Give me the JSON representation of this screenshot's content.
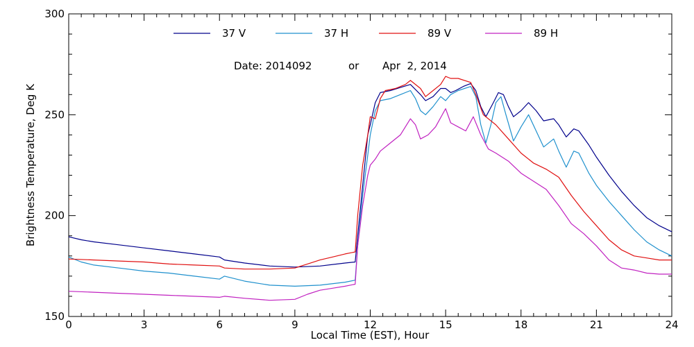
{
  "chart_data": {
    "type": "line",
    "title": "",
    "annotation": {
      "date_label": "Date: 2014092",
      "or_label": "or",
      "date_text": "Apr  2, 2014"
    },
    "xlabel": "Local Time (EST), Hour",
    "ylabel": "Brightness Temperature, Deg K",
    "xlim": [
      0,
      24
    ],
    "ylim": [
      150,
      300
    ],
    "x_ticks": [
      0,
      3,
      6,
      9,
      12,
      15,
      18,
      21,
      24
    ],
    "x_minor_step": 0.5,
    "y_ticks": [
      150,
      200,
      250,
      300
    ],
    "y_minor_step": 10,
    "grid": false,
    "legend_position": "top",
    "series": [
      {
        "name": "37 V",
        "color": "#00008b",
        "points": [
          [
            0,
            189.5
          ],
          [
            0.5,
            188
          ],
          [
            1,
            187
          ],
          [
            2,
            185.5
          ],
          [
            3,
            184
          ],
          [
            4,
            182.5
          ],
          [
            5,
            181
          ],
          [
            6,
            179.5
          ],
          [
            6.2,
            178
          ],
          [
            7,
            176.5
          ],
          [
            8,
            175
          ],
          [
            9,
            174.5
          ],
          [
            10,
            175
          ],
          [
            11,
            176.5
          ],
          [
            11.4,
            177
          ],
          [
            11.5,
            190
          ],
          [
            11.7,
            215
          ],
          [
            11.9,
            240
          ],
          [
            12,
            245
          ],
          [
            12.2,
            256
          ],
          [
            12.4,
            261
          ],
          [
            12.8,
            262
          ],
          [
            13.2,
            263.5
          ],
          [
            13.6,
            265
          ],
          [
            14,
            260
          ],
          [
            14.2,
            257
          ],
          [
            14.5,
            259
          ],
          [
            14.8,
            263
          ],
          [
            15,
            263
          ],
          [
            15.2,
            261
          ],
          [
            15.4,
            262
          ],
          [
            15.7,
            264
          ],
          [
            16,
            265.5
          ],
          [
            16.2,
            262
          ],
          [
            16.4,
            254
          ],
          [
            16.6,
            249
          ],
          [
            16.9,
            256
          ],
          [
            17.1,
            261
          ],
          [
            17.3,
            260
          ],
          [
            17.5,
            254
          ],
          [
            17.7,
            249
          ],
          [
            18,
            252
          ],
          [
            18.3,
            256
          ],
          [
            18.6,
            252
          ],
          [
            18.9,
            247
          ],
          [
            19.3,
            248
          ],
          [
            19.5,
            245
          ],
          [
            19.8,
            239
          ],
          [
            20.1,
            243
          ],
          [
            20.3,
            242
          ],
          [
            20.7,
            235
          ],
          [
            21,
            229
          ],
          [
            21.5,
            220
          ],
          [
            22,
            212
          ],
          [
            22.5,
            205
          ],
          [
            23,
            199
          ],
          [
            23.5,
            195
          ],
          [
            24,
            192
          ]
        ]
      },
      {
        "name": "37 H",
        "color": "#1e90cd",
        "points": [
          [
            0,
            179.5
          ],
          [
            0.5,
            177
          ],
          [
            1,
            175.5
          ],
          [
            2,
            174
          ],
          [
            3,
            172.5
          ],
          [
            4,
            171.5
          ],
          [
            5,
            170
          ],
          [
            6,
            168.5
          ],
          [
            6.2,
            170
          ],
          [
            7,
            167.5
          ],
          [
            8,
            165.5
          ],
          [
            9,
            165
          ],
          [
            10,
            165.5
          ],
          [
            11,
            167
          ],
          [
            11.4,
            168
          ],
          [
            11.5,
            185
          ],
          [
            11.7,
            210
          ],
          [
            11.9,
            230
          ],
          [
            12,
            240
          ],
          [
            12.2,
            252
          ],
          [
            12.4,
            257
          ],
          [
            12.8,
            258
          ],
          [
            13.2,
            260
          ],
          [
            13.6,
            262
          ],
          [
            13.8,
            258
          ],
          [
            14,
            252
          ],
          [
            14.2,
            250
          ],
          [
            14.5,
            254
          ],
          [
            14.8,
            259
          ],
          [
            15,
            257
          ],
          [
            15.2,
            260
          ],
          [
            15.5,
            262
          ],
          [
            16,
            264
          ],
          [
            16.2,
            259
          ],
          [
            16.4,
            245
          ],
          [
            16.6,
            236
          ],
          [
            16.8,
            245
          ],
          [
            17,
            256
          ],
          [
            17.2,
            259
          ],
          [
            17.4,
            250
          ],
          [
            17.7,
            237
          ],
          [
            18,
            244
          ],
          [
            18.3,
            250
          ],
          [
            18.6,
            242
          ],
          [
            18.9,
            234
          ],
          [
            19.3,
            238
          ],
          [
            19.5,
            232
          ],
          [
            19.8,
            224
          ],
          [
            20.1,
            232
          ],
          [
            20.3,
            231
          ],
          [
            20.7,
            221
          ],
          [
            21,
            215
          ],
          [
            21.5,
            207
          ],
          [
            22,
            200
          ],
          [
            22.5,
            193
          ],
          [
            23,
            187
          ],
          [
            23.5,
            183
          ],
          [
            24,
            180
          ]
        ]
      },
      {
        "name": "89 V",
        "color": "#e01010",
        "points": [
          [
            0,
            178.5
          ],
          [
            1,
            178
          ],
          [
            2,
            177.5
          ],
          [
            3,
            177
          ],
          [
            4,
            176
          ],
          [
            5,
            175.5
          ],
          [
            6,
            175
          ],
          [
            6.2,
            174
          ],
          [
            7,
            173.5
          ],
          [
            8,
            173.5
          ],
          [
            9,
            174
          ],
          [
            9.5,
            176
          ],
          [
            10,
            178
          ],
          [
            10.5,
            179.5
          ],
          [
            11,
            181
          ],
          [
            11.4,
            182
          ],
          [
            11.5,
            200
          ],
          [
            11.7,
            225
          ],
          [
            11.9,
            240
          ],
          [
            12,
            249
          ],
          [
            12.2,
            248
          ],
          [
            12.4,
            258
          ],
          [
            12.6,
            262
          ],
          [
            13,
            263
          ],
          [
            13.4,
            265
          ],
          [
            13.6,
            267
          ],
          [
            14,
            263
          ],
          [
            14.2,
            259
          ],
          [
            14.5,
            262
          ],
          [
            14.8,
            265
          ],
          [
            15,
            269
          ],
          [
            15.2,
            268
          ],
          [
            15.5,
            268
          ],
          [
            16,
            266
          ],
          [
            16.2,
            260
          ],
          [
            16.5,
            250
          ],
          [
            17,
            245
          ],
          [
            17.5,
            238
          ],
          [
            18,
            231
          ],
          [
            18.5,
            226
          ],
          [
            19,
            223
          ],
          [
            19.5,
            219
          ],
          [
            20,
            210
          ],
          [
            20.5,
            202
          ],
          [
            21,
            195
          ],
          [
            21.5,
            188
          ],
          [
            22,
            183
          ],
          [
            22.5,
            180
          ],
          [
            23,
            179
          ],
          [
            23.5,
            178
          ],
          [
            24,
            178
          ]
        ]
      },
      {
        "name": "89 H",
        "color": "#c020c0",
        "points": [
          [
            0,
            162.5
          ],
          [
            1,
            162
          ],
          [
            2,
            161.5
          ],
          [
            3,
            161
          ],
          [
            4,
            160.5
          ],
          [
            5,
            160
          ],
          [
            6,
            159.5
          ],
          [
            6.2,
            160
          ],
          [
            7,
            159
          ],
          [
            8,
            158
          ],
          [
            9,
            158.5
          ],
          [
            9.5,
            161
          ],
          [
            10,
            163
          ],
          [
            10.5,
            164
          ],
          [
            11,
            165
          ],
          [
            11.4,
            166
          ],
          [
            11.5,
            185
          ],
          [
            11.7,
            205
          ],
          [
            11.9,
            220
          ],
          [
            12,
            225
          ],
          [
            12.2,
            228
          ],
          [
            12.4,
            232
          ],
          [
            12.8,
            236
          ],
          [
            13.2,
            240
          ],
          [
            13.6,
            248
          ],
          [
            13.8,
            245
          ],
          [
            14,
            238
          ],
          [
            14.3,
            240
          ],
          [
            14.6,
            244
          ],
          [
            15,
            253
          ],
          [
            15.2,
            246
          ],
          [
            15.5,
            244
          ],
          [
            15.8,
            242
          ],
          [
            16.1,
            249
          ],
          [
            16.4,
            240
          ],
          [
            16.7,
            233
          ],
          [
            17,
            231
          ],
          [
            17.5,
            227
          ],
          [
            18,
            221
          ],
          [
            18.5,
            217
          ],
          [
            19,
            213
          ],
          [
            19.5,
            205
          ],
          [
            20,
            196
          ],
          [
            20.5,
            191
          ],
          [
            21,
            185
          ],
          [
            21.5,
            178
          ],
          [
            22,
            174
          ],
          [
            22.5,
            173
          ],
          [
            23,
            171.5
          ],
          [
            23.5,
            171
          ],
          [
            24,
            171
          ]
        ]
      }
    ]
  }
}
